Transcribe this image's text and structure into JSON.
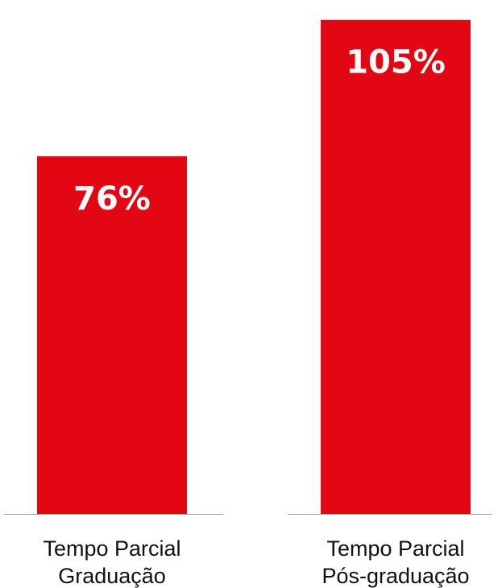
{
  "chart_data": {
    "type": "bar",
    "categories": [
      [
        "Tempo Parcial",
        "Graduação"
      ],
      [
        "Tempo Parcial",
        "Pós-graduação"
      ]
    ],
    "values": [
      76,
      105
    ],
    "value_labels": [
      "76%",
      "105%"
    ],
    "unit": "%",
    "title": "",
    "xlabel": "",
    "ylabel": "",
    "ylim": [
      0,
      107
    ],
    "grid": false,
    "legend": "none",
    "colors": {
      "bar": "#E30613",
      "value_text": "#FFFFFF",
      "label_text": "#111111",
      "baseline": "#9E9E9E"
    }
  }
}
